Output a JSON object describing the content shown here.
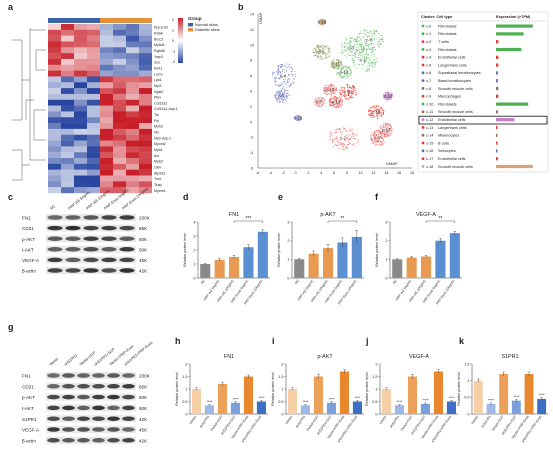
{
  "panel_letters": [
    "a",
    "b",
    "c",
    "d",
    "e",
    "f",
    "g",
    "h",
    "i",
    "j",
    "k"
  ],
  "heatmap": {
    "genes": [
      "Ppp1r3d",
      "Rab8",
      "Brcc3",
      "Mylk3L",
      "Rgbd6",
      "Yarp2",
      "Sox",
      "Kmt1",
      "Lum1",
      "Lpk1",
      "Myl1",
      "Vgat2",
      "Plk1",
      "Col12a1",
      "Col12a1-dup-1",
      "Ttn",
      "Pxl",
      "Myh3",
      "Vln",
      "Neb-dup-1",
      "Myom2",
      "Myh1",
      "Acl",
      "Mylpf",
      "Ckm",
      "Atp2a1",
      "Tnnt",
      "Tcap",
      "Myom1"
    ],
    "legend": {
      "title": "Group",
      "items": [
        {
          "label": "Normal skins",
          "color": "#3a63a8"
        },
        {
          "label": "Diabetic skins",
          "color": "#e3923b"
        }
      ],
      "scale_labels": [
        "2",
        "1",
        "0",
        "-1",
        "-2"
      ]
    }
  },
  "umap": {
    "xlabel": "UMAP",
    "ylabel": "UMAP",
    "x_ticks": [
      "-6",
      "-4",
      "-2",
      "0",
      "2",
      "4",
      "6",
      "8",
      "10",
      "12",
      "14",
      "16",
      "18"
    ],
    "y_ticks": [
      "14",
      "12",
      "10",
      "8",
      "6",
      "4",
      "2",
      "0",
      "-2",
      "-4",
      "-6"
    ],
    "cluster_labels": [
      "c-0",
      "c-1",
      "c-2",
      "c-3",
      "c-4",
      "c-5",
      "c-6",
      "c-7",
      "c-8",
      "c-9",
      "c-10",
      "c-11",
      "c-12",
      "c-13",
      "c-14",
      "c-15",
      "c-16",
      "c-17",
      "c-18"
    ],
    "table_headers": {
      "cluster": "Cluster: Cell type",
      "expression": "Expression (>TPM)"
    },
    "table_rows": [
      {
        "cluster": "c-0",
        "type": "Fibroblasts",
        "bar": 0.8,
        "color": "#4caf50"
      },
      {
        "cluster": "c-1",
        "type": "Fibroblasts",
        "bar": 0.6,
        "color": "#4caf50"
      },
      {
        "cluster": "c-2",
        "type": "T cells",
        "bar": 0.05,
        "color": "#e53935"
      },
      {
        "cluster": "c-3",
        "type": "Fibroblasts",
        "bar": 0.55,
        "color": "#4caf50"
      },
      {
        "cluster": "c-4",
        "type": "Endothelial cells",
        "bar": 0.05,
        "color": "#e53935"
      },
      {
        "cluster": "c-5",
        "type": "Langerhans cells",
        "bar": 0.05,
        "color": "#e53935"
      },
      {
        "cluster": "c-6",
        "type": "Suprabasal keratinocytes",
        "bar": 0.04,
        "color": "#5c6bc0"
      },
      {
        "cluster": "c-7",
        "type": "Basal keratinocytes",
        "bar": 0.04,
        "color": "#5c6bc0"
      },
      {
        "cluster": "c-8",
        "type": "Smooth muscle cells",
        "bar": 0.05,
        "color": "#8d6e63"
      },
      {
        "cluster": "c-9",
        "type": "Macrophages",
        "bar": 0.05,
        "color": "#e53935"
      },
      {
        "cluster": "c-10",
        "type": "Fibroblasts",
        "bar": 0.7,
        "color": "#4caf50"
      },
      {
        "cluster": "c-11",
        "type": "Smooth muscle cells",
        "bar": 0.04,
        "color": "#8d6e63"
      },
      {
        "cluster": "c-12",
        "type": "Endothelial cells",
        "bar": 0.4,
        "color": "#c37ec7"
      },
      {
        "cluster": "c-13",
        "type": "Langerhans cells",
        "bar": 0.03,
        "color": "#e53935"
      },
      {
        "cluster": "c-14",
        "type": "Melanocytes",
        "bar": 0.03,
        "color": "#8d6e63"
      },
      {
        "cluster": "c-15",
        "type": "B cells",
        "bar": 0.03,
        "color": "#e53935"
      },
      {
        "cluster": "c-16",
        "type": "Sebocytes",
        "bar": 0.03,
        "color": "#5c6bc0"
      },
      {
        "cluster": "c-17",
        "type": "Endothelial cells",
        "bar": 0.04,
        "color": "#e53935"
      },
      {
        "cluster": "c-18",
        "type": "Smooth muscle cells",
        "bar": 0.8,
        "color": "#d7a27a"
      }
    ],
    "highlight_row": "c-12"
  },
  "blot_c": {
    "lanes": [
      "NC",
      "PRP-AS 5ng/mL",
      "PRP-AS 10ng/mL",
      "PRP-Exos 5ng/mL",
      "PRP-Exos 10ng/mL"
    ],
    "bands": [
      {
        "name": "FN1",
        "kda": "230K"
      },
      {
        "name": "CD31",
        "kda": "85K"
      },
      {
        "name": "p-AKT",
        "kda": "50K"
      },
      {
        "name": "t-AKT",
        "kda": "50K"
      },
      {
        "name": "VEGF-A",
        "kda": "45K"
      },
      {
        "name": "β-actin",
        "kda": "42K"
      }
    ]
  },
  "blot_g": {
    "lanes": [
      "Vector",
      "shS1PR1",
      "Vector+S1P",
      "shS1PR1+S1P",
      "Vector+PRP-Exos",
      "shS1PR1+PRP-Exos"
    ],
    "bands": [
      {
        "name": "FN1",
        "kda": "230K"
      },
      {
        "name": "CD31",
        "kda": "85K"
      },
      {
        "name": "p-AKT",
        "kda": "50K"
      },
      {
        "name": "t-AKT",
        "kda": "50K"
      },
      {
        "name": "S1PR1",
        "kda": "42K"
      },
      {
        "name": "VEGF-A",
        "kda": "45K"
      },
      {
        "name": "β-actin",
        "kda": "42K"
      }
    ]
  },
  "chart_data": [
    {
      "panel": "d",
      "type": "bar",
      "title": "FN1",
      "ylabel": "Relative protein level",
      "categories": [
        "NC",
        "PRP-AS 5ng/mL",
        "PRP-AS 10ng/mL",
        "PRP-Exos 5ng/mL",
        "PRP-Exos 10ng/mL"
      ],
      "values": [
        1.0,
        1.3,
        1.5,
        2.2,
        3.3
      ],
      "errors": [
        0.05,
        0.12,
        0.12,
        0.18,
        0.15
      ],
      "colors": [
        "#8a8a8a",
        "#e89a52",
        "#e89a52",
        "#5b8fd1",
        "#5b8fd1"
      ],
      "ylim": [
        0,
        4
      ],
      "yticks": [
        0,
        1,
        2,
        3,
        4
      ],
      "significance": "***"
    },
    {
      "panel": "e",
      "type": "bar",
      "title": "p-AKT",
      "ylabel": "Relative protein level",
      "categories": [
        "NC",
        "PRP-AS 5ng/mL",
        "PRP-AS 10ng/mL",
        "PRP-Exos 5ng/mL",
        "PRP-Exos 10ng/mL"
      ],
      "values": [
        1.0,
        1.3,
        1.6,
        1.9,
        2.2
      ],
      "errors": [
        0.05,
        0.15,
        0.2,
        0.25,
        0.35
      ],
      "colors": [
        "#8a8a8a",
        "#e89a52",
        "#e89a52",
        "#5b8fd1",
        "#5b8fd1"
      ],
      "ylim": [
        0,
        3
      ],
      "yticks": [
        0,
        1,
        2,
        3
      ],
      "significance": "**"
    },
    {
      "panel": "f",
      "type": "bar",
      "title": "VEGF-A",
      "ylabel": "Relative protein level",
      "categories": [
        "NC",
        "PRP-AS 5ng/mL",
        "PRP-AS 10ng/mL",
        "PRP-Exos 5ng/mL",
        "PRP-Exos 10ng/mL"
      ],
      "values": [
        1.0,
        1.1,
        1.15,
        2.0,
        2.4
      ],
      "errors": [
        0.04,
        0.06,
        0.06,
        0.12,
        0.1
      ],
      "colors": [
        "#8a8a8a",
        "#e89a52",
        "#e89a52",
        "#5b8fd1",
        "#5b8fd1"
      ],
      "ylim": [
        0,
        3
      ],
      "yticks": [
        0,
        1,
        2,
        3
      ],
      "significance": "**"
    },
    {
      "panel": "h",
      "type": "bar",
      "title": "FN1",
      "ylabel": "Relative protein level",
      "categories": [
        "Vector",
        "shS1PR1",
        "Vector+S1P",
        "shS1PR1+S1P",
        "Vector+PRP-Exos",
        "shS1PR1+PRP-Exos"
      ],
      "values": [
        1.0,
        0.35,
        1.2,
        0.45,
        1.5,
        0.5
      ],
      "errors": [
        0.05,
        0.03,
        0.06,
        0.04,
        0.06,
        0.04
      ],
      "colors": [
        "#f6cfa6",
        "#9fb7e4",
        "#eda05a",
        "#7b9fdc",
        "#e8872e",
        "#3f6fc4"
      ],
      "ylim": [
        0,
        2
      ],
      "yticks": [
        0,
        0.5,
        1.0,
        1.5,
        2.0
      ],
      "significance": "****"
    },
    {
      "panel": "i",
      "type": "bar",
      "title": "p-AKT",
      "ylabel": "Relative protein level",
      "categories": [
        "Vector",
        "shS1PR1",
        "Vector+S1P",
        "shS1PR1+S1P",
        "Vector+PRP-Exos",
        "shS1PR1+PRP-Exos"
      ],
      "values": [
        1.0,
        0.35,
        1.5,
        0.45,
        1.7,
        0.5
      ],
      "errors": [
        0.05,
        0.03,
        0.08,
        0.04,
        0.08,
        0.04
      ],
      "colors": [
        "#f6cfa6",
        "#9fb7e4",
        "#eda05a",
        "#7b9fdc",
        "#e8872e",
        "#3f6fc4"
      ],
      "ylim": [
        0,
        2
      ],
      "yticks": [
        0,
        0.5,
        1.0,
        1.5,
        2.0
      ],
      "significance": "****"
    },
    {
      "panel": "j",
      "type": "bar",
      "title": "VEGF-A",
      "ylabel": "Relative protein level",
      "categories": [
        "Vector",
        "shS1PR1",
        "Vector+S1P",
        "shS1PR1+S1P",
        "Vector+PRP-Exos",
        "shS1PR1+PRP-Exos"
      ],
      "values": [
        1.0,
        0.35,
        1.5,
        0.4,
        1.7,
        0.5
      ],
      "errors": [
        0.05,
        0.03,
        0.08,
        0.04,
        0.07,
        0.04
      ],
      "colors": [
        "#f6cfa6",
        "#9fb7e4",
        "#eda05a",
        "#7b9fdc",
        "#e8872e",
        "#3f6fc4"
      ],
      "ylim": [
        0,
        2
      ],
      "yticks": [
        0,
        0.5,
        1.0,
        1.5,
        2.0
      ],
      "significance": "****"
    },
    {
      "panel": "k",
      "type": "bar",
      "title": "S1PR1",
      "ylabel": "Relative protein level",
      "categories": [
        "Vector",
        "shS1PR1",
        "Vector+S1P",
        "shS1PR1+S1P",
        "Vector+PRP-Exos",
        "shS1PR1+PRP-Exos"
      ],
      "values": [
        1.0,
        0.3,
        1.2,
        0.4,
        1.2,
        0.45
      ],
      "errors": [
        0.05,
        0.03,
        0.06,
        0.04,
        0.06,
        0.04
      ],
      "colors": [
        "#f6cfa6",
        "#9fb7e4",
        "#eda05a",
        "#7b9fdc",
        "#e8872e",
        "#3f6fc4"
      ],
      "ylim": [
        0,
        1.5
      ],
      "yticks": [
        0,
        0.5,
        1.0,
        1.5
      ],
      "significance": "****"
    }
  ]
}
